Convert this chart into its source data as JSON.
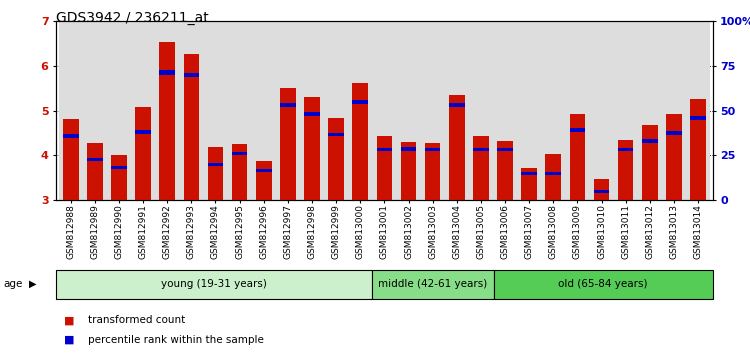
{
  "title": "GDS3942 / 236211_at",
  "samples": [
    "GSM812988",
    "GSM812989",
    "GSM812990",
    "GSM812991",
    "GSM812992",
    "GSM812993",
    "GSM812994",
    "GSM812995",
    "GSM812996",
    "GSM812997",
    "GSM812998",
    "GSM812999",
    "GSM813000",
    "GSM813001",
    "GSM813002",
    "GSM813003",
    "GSM813004",
    "GSM813005",
    "GSM813006",
    "GSM813007",
    "GSM813008",
    "GSM813009",
    "GSM813010",
    "GSM813011",
    "GSM813012",
    "GSM813013",
    "GSM813014"
  ],
  "red_values": [
    4.82,
    4.28,
    4.0,
    5.07,
    6.53,
    6.27,
    4.19,
    4.25,
    3.88,
    5.5,
    5.3,
    4.83,
    5.62,
    4.44,
    4.3,
    4.27,
    5.35,
    4.43,
    4.33,
    3.72,
    4.02,
    4.93,
    3.48,
    4.34,
    4.67,
    4.93,
    5.25
  ],
  "blue_heights": [
    0.09,
    0.07,
    0.07,
    0.09,
    0.1,
    0.1,
    0.07,
    0.07,
    0.07,
    0.09,
    0.09,
    0.08,
    0.09,
    0.07,
    0.08,
    0.07,
    0.09,
    0.07,
    0.07,
    0.07,
    0.07,
    0.08,
    0.07,
    0.07,
    0.08,
    0.09,
    0.1
  ],
  "blue_positions": [
    4.38,
    3.88,
    3.7,
    4.47,
    5.8,
    5.75,
    3.75,
    4.0,
    3.63,
    5.07,
    4.88,
    4.43,
    5.15,
    4.1,
    4.1,
    4.1,
    5.07,
    4.1,
    4.1,
    3.55,
    3.55,
    4.53,
    3.15,
    4.1,
    4.28,
    4.45,
    4.78
  ],
  "groups": [
    {
      "label": "young (19-31 years)",
      "start": 0,
      "end": 13,
      "color": "#ccf0cc"
    },
    {
      "label": "middle (42-61 years)",
      "start": 13,
      "end": 18,
      "color": "#88dd88"
    },
    {
      "label": "old (65-84 years)",
      "start": 18,
      "end": 27,
      "color": "#55cc55"
    }
  ],
  "ymin": 3.0,
  "ymax": 7.0,
  "yticks": [
    3,
    4,
    5,
    6,
    7
  ],
  "right_yticks_pct": [
    0,
    25,
    50,
    75,
    100
  ],
  "right_yticklabels": [
    "0",
    "25",
    "50",
    "75",
    "100%"
  ],
  "bar_color": "#cc1100",
  "blue_color": "#0000cc",
  "bar_width": 0.65,
  "bg_color": "#ffffff",
  "title_fontsize": 10,
  "tick_fontsize": 6.5,
  "left_tick_color": "#cc1100",
  "right_tick_color": "#0000cc",
  "legend_items": [
    {
      "color": "#cc1100",
      "label": "transformed count"
    },
    {
      "color": "#0000cc",
      "label": "percentile rank within the sample"
    }
  ]
}
